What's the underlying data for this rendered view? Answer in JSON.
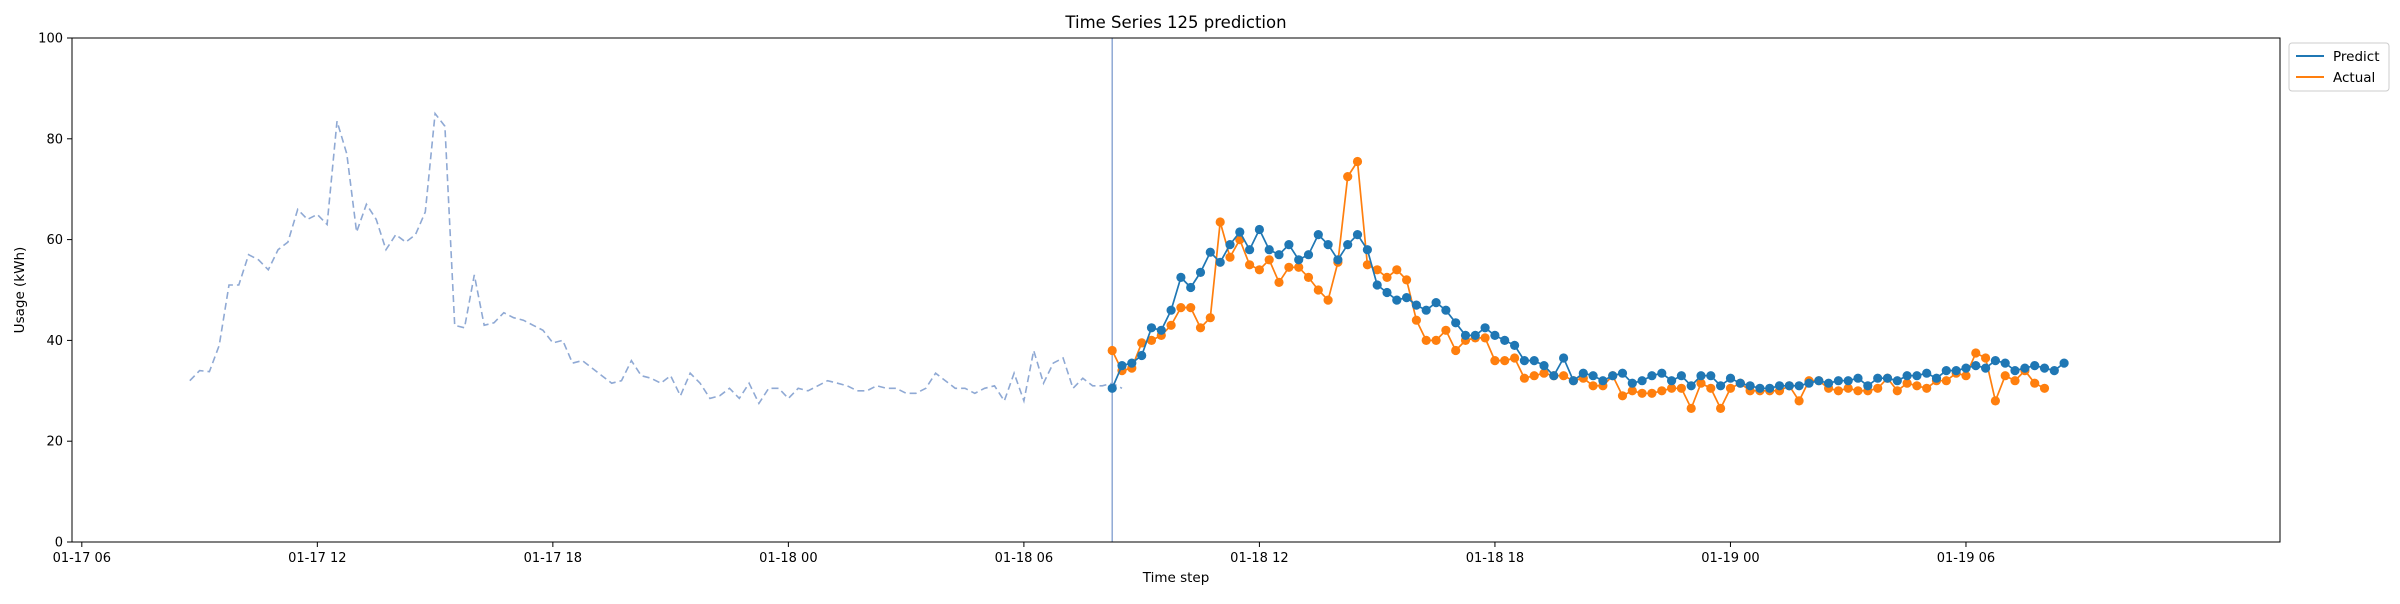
{
  "chart_data": {
    "type": "line",
    "title": "Time Series 125 prediction",
    "xlabel": "Time step",
    "ylabel": "Usage (kWh)",
    "x_unit": "hours",
    "xlim": [
      "01-17 05:45",
      "01-19 14:00"
    ],
    "ylim": [
      0,
      100
    ],
    "x_ticks": [
      {
        "label": "01-17 06",
        "value": "01-17 06:00"
      },
      {
        "label": "01-17 12",
        "value": "01-17 12:00"
      },
      {
        "label": "01-17 18",
        "value": "01-17 18:00"
      },
      {
        "label": "01-18 00",
        "value": "01-18 00:00"
      },
      {
        "label": "01-18 06",
        "value": "01-18 06:00"
      },
      {
        "label": "01-18 12",
        "value": "01-18 12:00"
      },
      {
        "label": "01-18 18",
        "value": "01-18 18:00"
      },
      {
        "label": "01-19 00",
        "value": "01-19 00:00"
      },
      {
        "label": "01-19 06",
        "value": "01-19 06:00"
      }
    ],
    "y_ticks": [
      0,
      20,
      40,
      60,
      80,
      100
    ],
    "grid": false,
    "legend": {
      "position": "upper right, outside plot",
      "entries": [
        "Predict",
        "Actual"
      ]
    },
    "vline": {
      "x": "01-18 08:15",
      "color": "#8fa9d4"
    },
    "colors": {
      "history": "#8fa9d4",
      "Predict": "#1f77b4",
      "Actual": "#ff7f0e"
    },
    "history": {
      "start": "01-17 08:45",
      "step_hours": 0.25,
      "values": [
        32,
        34,
        33.8,
        39,
        51,
        51,
        57,
        56,
        54,
        58,
        59.5,
        66,
        64,
        65,
        63,
        83.5,
        77,
        61.5,
        67,
        64,
        58,
        61,
        59.5,
        61,
        65.5,
        85,
        82.5,
        43,
        42.5,
        53,
        43,
        43.5,
        45.5,
        44.5,
        44,
        43,
        42,
        39.5,
        40,
        35.5,
        36,
        34.5,
        33,
        31.5,
        32,
        36,
        33,
        32.5,
        31.5,
        33,
        29,
        33.5,
        31.5,
        28.5,
        29,
        30.5,
        28.5,
        31.5,
        27.5,
        30.5,
        30.5,
        28.5,
        30.5,
        30,
        31,
        32,
        31.5,
        31,
        30,
        30,
        31,
        30.5,
        30.5,
        29.5,
        29.5,
        30.5,
        33.5,
        32,
        30.5,
        30.5,
        29.5,
        30.5,
        31,
        28,
        33.5,
        28,
        38,
        31.5,
        35.5,
        36.5,
        30.5,
        32.5,
        31,
        31,
        31.5,
        30.5
      ]
    },
    "series": [
      {
        "name": "Predict",
        "start": "01-18 08:15",
        "step_hours": 0.25,
        "values": [
          30.5,
          35,
          35.5,
          37,
          42.5,
          42,
          46,
          52.5,
          50.5,
          53.5,
          57.5,
          55.5,
          59,
          61.5,
          58,
          62,
          58,
          57,
          59,
          56,
          57,
          61,
          59,
          56,
          59,
          61,
          58,
          51,
          49.5,
          48,
          48.5,
          47,
          46,
          47.5,
          46,
          43.5,
          41,
          41,
          42.5,
          41,
          40,
          39,
          36,
          36,
          35,
          33,
          36.5,
          32,
          33.5,
          33,
          32,
          33,
          33.5,
          31.5,
          32,
          33,
          33.5,
          32,
          33,
          31,
          33,
          33,
          31,
          32.5,
          31.5,
          31,
          30.5,
          30.5,
          31,
          31,
          31,
          31.5,
          32,
          31.5,
          32,
          32,
          32.5,
          31,
          32.5,
          32.5,
          32,
          33,
          33,
          33.5,
          32.5,
          34,
          34,
          34.5,
          35,
          34.5,
          36,
          35.5,
          34,
          34.5,
          35,
          34.5,
          34,
          35.5
        ]
      },
      {
        "name": "Actual",
        "start": "01-18 08:15",
        "step_hours": 0.25,
        "values": [
          38,
          34,
          34.5,
          39.5,
          40,
          41,
          43,
          46.5,
          46.5,
          42.5,
          44.5,
          63.5,
          56.5,
          60,
          55,
          54,
          56,
          51.5,
          54.5,
          54.5,
          52.5,
          50,
          48,
          55.5,
          72.5,
          75.5,
          55,
          54,
          52.5,
          54,
          52,
          44,
          40,
          40,
          42,
          38,
          40,
          40.5,
          40.5,
          36,
          36,
          36.5,
          32.5,
          33,
          33.5,
          33,
          33,
          32,
          32.5,
          31,
          31,
          33,
          29,
          30,
          29.5,
          29.5,
          30,
          30.5,
          30.5,
          26.5,
          31.5,
          30.5,
          26.5,
          30.5,
          31.5,
          30,
          30,
          30,
          30,
          31,
          28,
          32,
          32,
          30.5,
          30,
          30.5,
          30,
          30,
          30.5,
          32.5,
          30,
          31.5,
          31,
          30.5,
          32,
          32,
          33.5,
          33,
          37.5,
          36.5,
          28,
          33,
          32,
          34,
          31.5,
          30.5
        ]
      }
    ]
  }
}
